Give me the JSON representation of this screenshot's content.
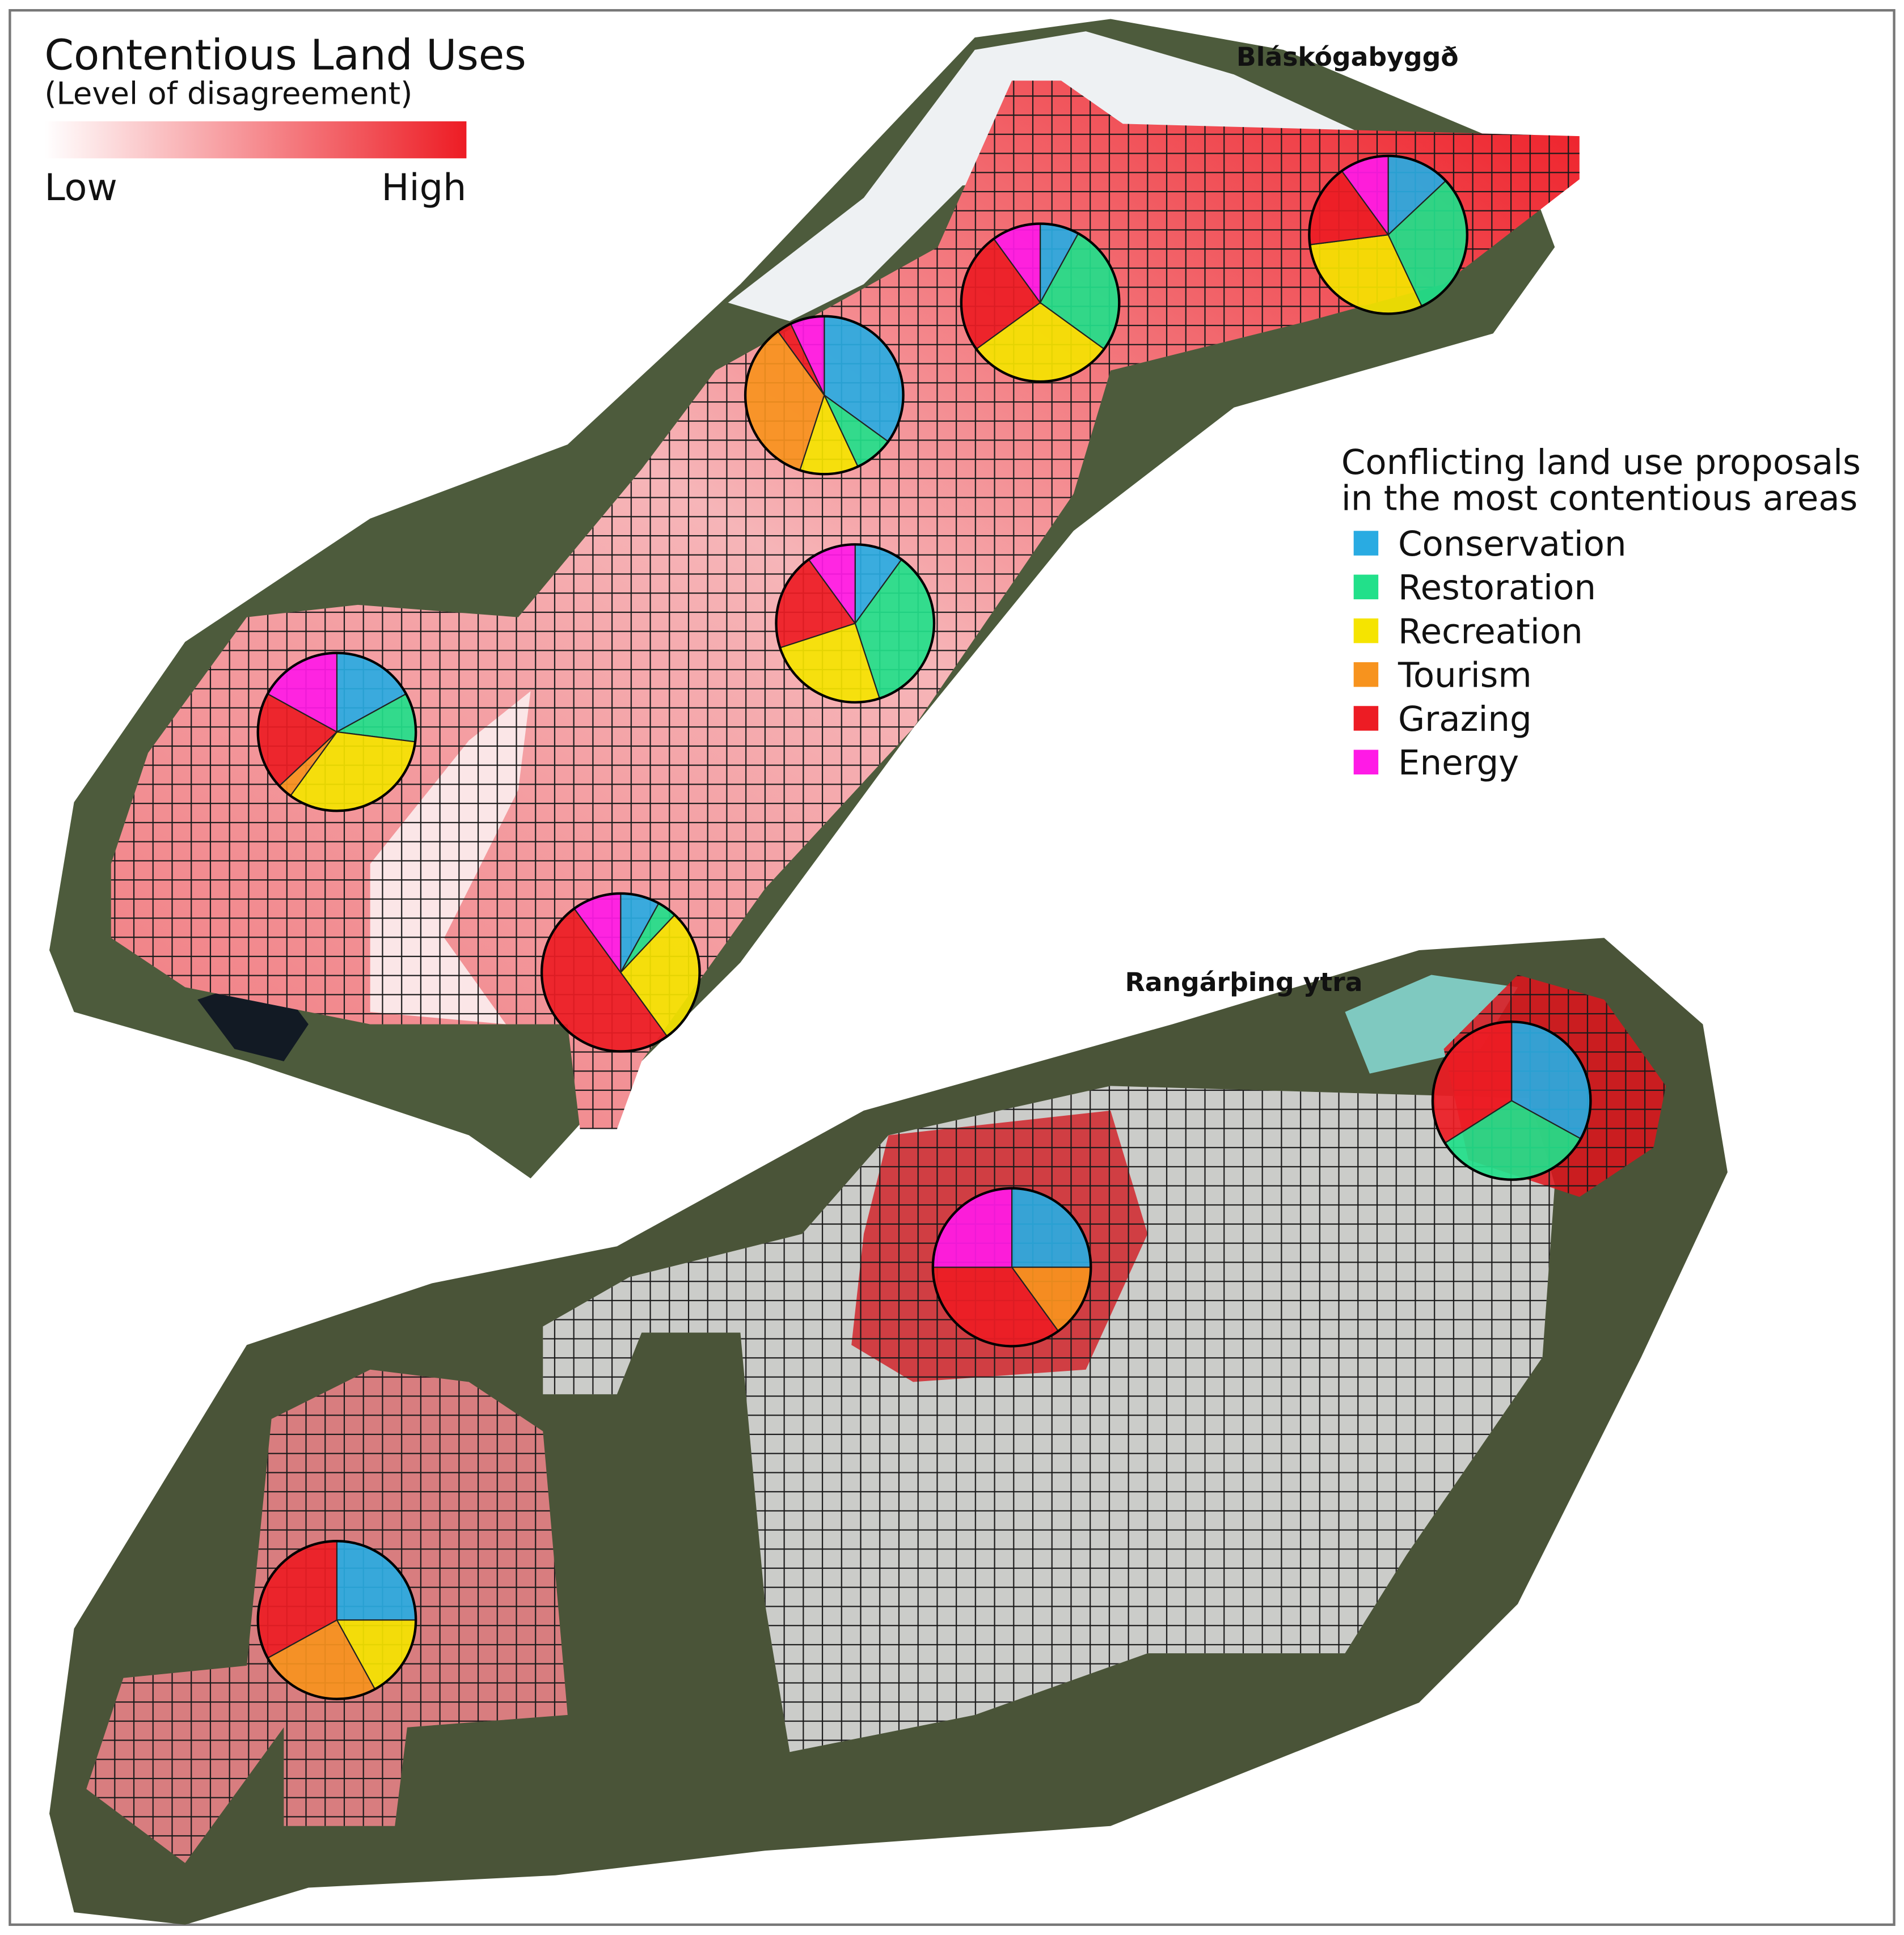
{
  "legend": {
    "title": "Contentious Land Uses",
    "subtitle": "(Level of disagreement)",
    "low": "Low",
    "high": "High"
  },
  "regions": [
    {
      "label": "Bláskógabyggð"
    },
    {
      "label": "Rangárþing ytra"
    }
  ],
  "proposals": {
    "title_lines": [
      "Conflicting land use proposals",
      "in the most contentious areas"
    ],
    "categories": [
      {
        "name": "Conservation",
        "color": "#29abe2"
      },
      {
        "name": "Restoration",
        "color": "#22e08a"
      },
      {
        "name": "Recreation",
        "color": "#f5e400"
      },
      {
        "name": "Tourism",
        "color": "#f7931e"
      },
      {
        "name": "Grazing",
        "color": "#ed1c24"
      },
      {
        "name": "Energy",
        "color": "#ff1ae6"
      }
    ]
  },
  "pies": [
    {
      "values": [
        13,
        30,
        30,
        0,
        17,
        10
      ]
    },
    {
      "values": [
        8,
        27,
        30,
        0,
        25,
        10
      ]
    },
    {
      "values": [
        35,
        8,
        12,
        35,
        3,
        7
      ]
    },
    {
      "values": [
        10,
        35,
        25,
        0,
        20,
        10
      ]
    },
    {
      "values": [
        17,
        10,
        33,
        3,
        20,
        17
      ]
    },
    {
      "values": [
        8,
        4,
        28,
        0,
        50,
        10
      ]
    },
    {
      "values": [
        33,
        33,
        0,
        0,
        34,
        0
      ]
    },
    {
      "values": [
        25,
        0,
        0,
        15,
        35,
        25
      ]
    },
    {
      "values": [
        25,
        0,
        17,
        25,
        33,
        0
      ]
    }
  ]
}
